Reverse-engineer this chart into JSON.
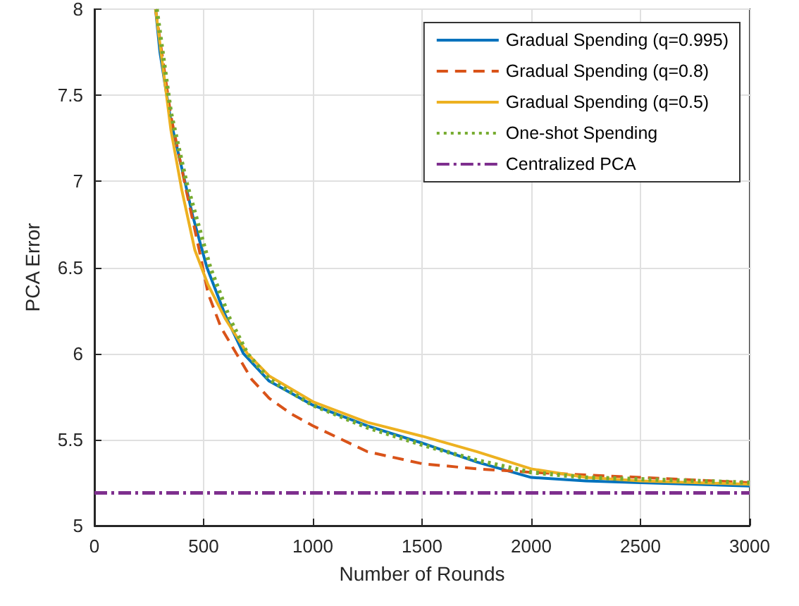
{
  "chart_data": {
    "type": "line",
    "xlabel": "Number of Rounds",
    "ylabel": "PCA Error",
    "xlim": [
      0,
      3000
    ],
    "xticks": [
      0,
      500,
      1000,
      1500,
      2000,
      2500,
      3000
    ],
    "ylim": [
      5,
      8
    ],
    "yticks": [
      5,
      5.5,
      6,
      6.5,
      7,
      7.5,
      8
    ],
    "grid": true,
    "legend": "top right",
    "marker": "none",
    "series": [
      {
        "name": "Gradual Spending (q=0.995)",
        "color": "#0072bd",
        "line_style": "solid",
        "x": [
          280,
          300,
          350,
          414,
          450,
          515,
          600,
          682,
          800,
          1000,
          1250,
          1500,
          1750,
          2000,
          2250,
          2500,
          2750,
          3000
        ],
        "values": [
          8.0,
          7.75,
          7.35,
          7.0,
          6.8,
          6.5,
          6.22,
          6.0,
          5.84,
          5.7,
          5.58,
          5.48,
          5.37,
          5.28,
          5.26,
          5.25,
          5.24,
          5.23
        ]
      },
      {
        "name": "Gradual Spending (q=0.8)",
        "color": "#d95319",
        "line_style": "dashed",
        "x": [
          280,
          350,
          420,
          480,
          520,
          580,
          650,
          720,
          800,
          900,
          1000,
          1250,
          1500,
          1750,
          2000,
          2500,
          3000
        ],
        "values": [
          8.0,
          7.38,
          6.95,
          6.6,
          6.35,
          6.15,
          6.0,
          5.85,
          5.74,
          5.65,
          5.58,
          5.43,
          5.36,
          5.33,
          5.31,
          5.28,
          5.25
        ]
      },
      {
        "name": "Gradual Spending (q=0.5)",
        "color": "#edb120",
        "line_style": "solid",
        "x": [
          280,
          350,
          400,
          460,
          520,
          600,
          700,
          800,
          1000,
          1250,
          1500,
          1750,
          2000,
          2250,
          2500,
          3000
        ],
        "values": [
          8.0,
          7.3,
          6.95,
          6.6,
          6.4,
          6.2,
          6.0,
          5.87,
          5.72,
          5.6,
          5.52,
          5.43,
          5.33,
          5.28,
          5.26,
          5.24
        ]
      },
      {
        "name": "One-shot Spending",
        "color": "#77ac30",
        "line_style": "dotted",
        "x": [
          285,
          350,
          420,
          530,
          620,
          700,
          800,
          1000,
          1250,
          1500,
          1750,
          2000,
          2250,
          2500,
          3000
        ],
        "values": [
          8.0,
          7.4,
          7.0,
          6.5,
          6.2,
          6.0,
          5.85,
          5.7,
          5.57,
          5.47,
          5.38,
          5.31,
          5.28,
          5.27,
          5.25
        ]
      },
      {
        "name": "Centralized PCA",
        "color": "#7e2f8e",
        "line_style": "dashdot",
        "x": [
          0,
          3000
        ],
        "values": [
          5.19,
          5.19
        ]
      }
    ]
  }
}
